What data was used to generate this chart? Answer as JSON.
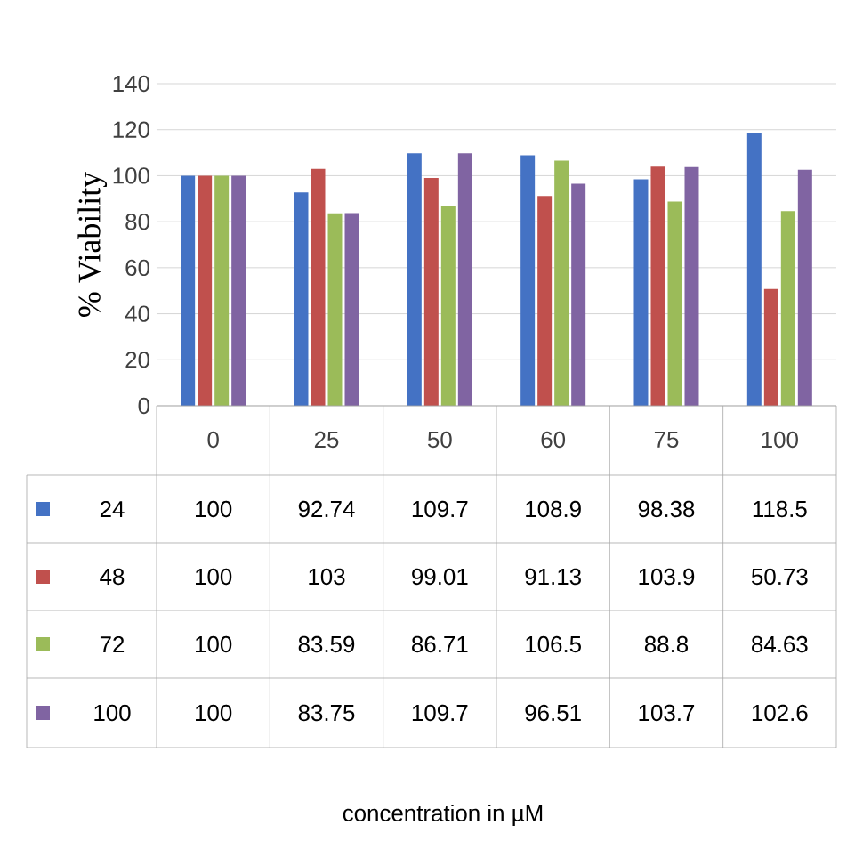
{
  "chart_data": {
    "type": "bar",
    "ylabel": "% Viability",
    "annotations": [
      "concentration in µM"
    ],
    "categories": [
      "0",
      "25",
      "50",
      "60",
      "75",
      "100"
    ],
    "series": [
      {
        "name": "24",
        "color": "#4472c4",
        "values": [
          100,
          92.74,
          109.7,
          108.9,
          98.38,
          118.5
        ]
      },
      {
        "name": "48",
        "color": "#c0504d",
        "values": [
          100,
          103,
          99.01,
          91.13,
          103.9,
          50.73
        ]
      },
      {
        "name": "72",
        "color": "#9bbb59",
        "values": [
          100,
          83.59,
          86.71,
          106.5,
          88.8,
          84.63
        ]
      },
      {
        "name": "100",
        "color": "#8064a2",
        "values": [
          100,
          83.75,
          109.7,
          96.51,
          103.7,
          102.6
        ]
      }
    ],
    "ylim": [
      0,
      140
    ],
    "yticks": [
      0,
      20,
      40,
      60,
      80,
      100,
      120,
      140
    ],
    "grid": "y",
    "legend": "bottom",
    "data_labels": true
  }
}
